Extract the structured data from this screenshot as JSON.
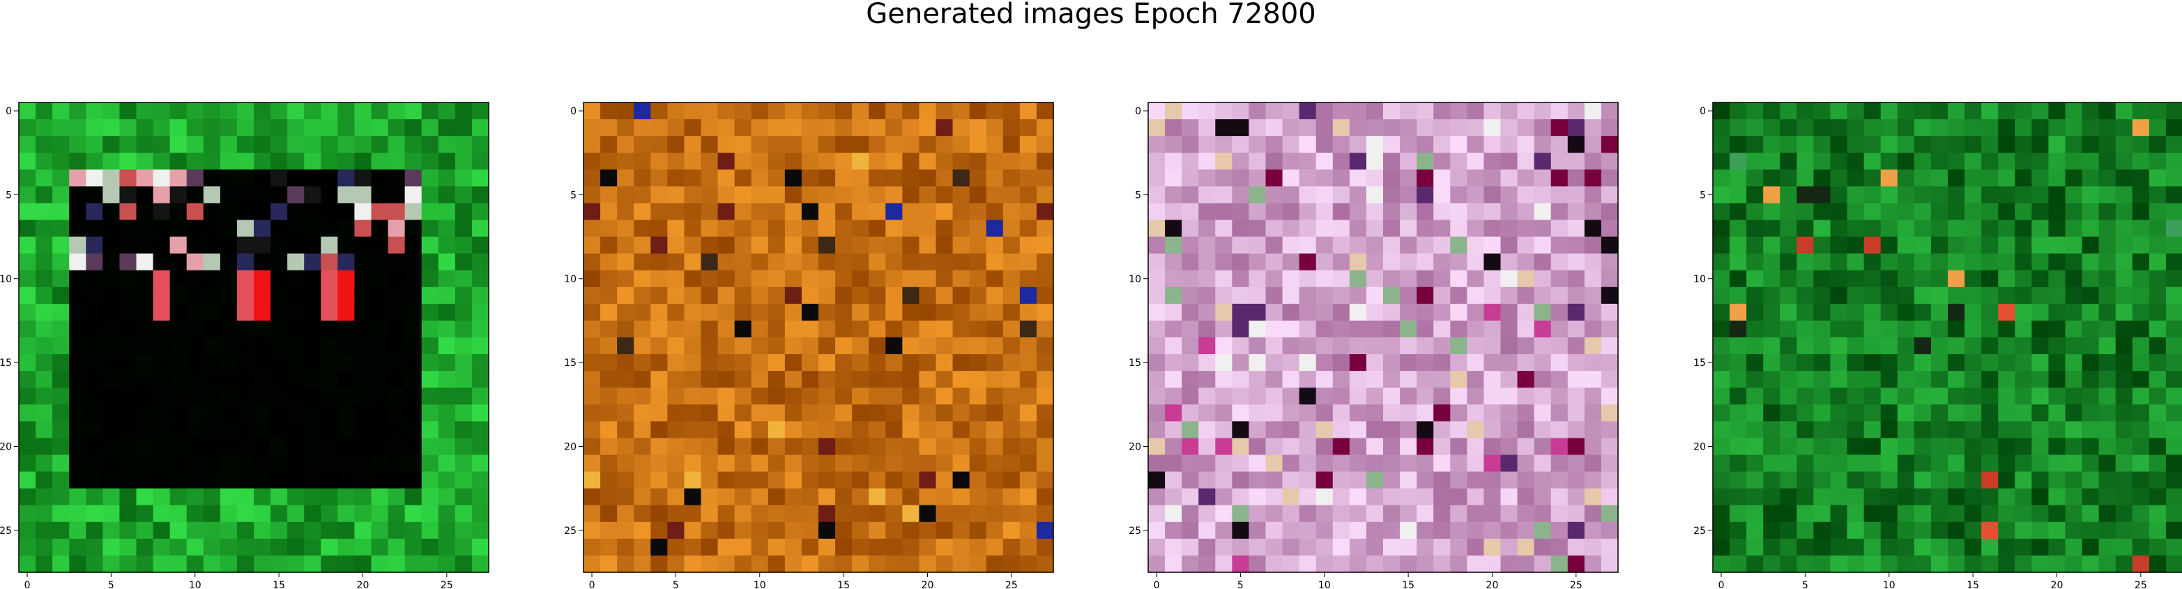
{
  "title": "Generated images Epoch 72800",
  "panels": [
    {
      "name": "panel-1",
      "palette": "green-frame"
    },
    {
      "name": "panel-2",
      "palette": "orange"
    },
    {
      "name": "panel-3",
      "palette": "pink"
    },
    {
      "name": "panel-4",
      "palette": "green"
    }
  ],
  "axes": {
    "x_ticks": [
      "0",
      "5",
      "10",
      "15",
      "20",
      "25"
    ],
    "y_ticks": [
      "0",
      "5",
      "10",
      "15",
      "20",
      "25"
    ],
    "grid_size": 28
  },
  "colors": {
    "frame": "#000000",
    "green": "#1f8a2a",
    "orange": "#c8861a",
    "pink": "#d6a0c8"
  }
}
